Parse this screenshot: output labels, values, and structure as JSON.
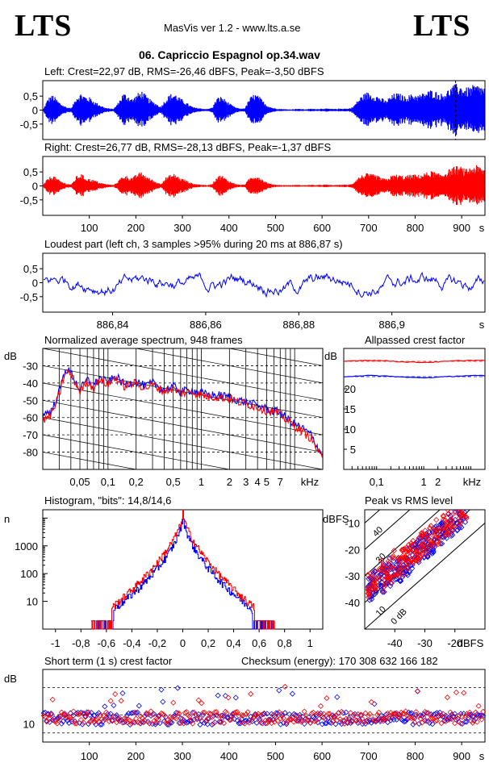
{
  "header": {
    "logo_left": "LTS",
    "logo_right": "LTS",
    "app": "MasVis ver 1.2 - www.lts.a.se",
    "file": "06. Capriccio Espagnol op.34.wav"
  },
  "labels": {
    "left": "Left: Crest=22,97 dB, RMS=-26,46 dBFS, Peak=-3,50 dBFS",
    "right": "Right: Crest=26,77 dB, RMS=-28,13 dBFS, Peak=-1,37 dBFS",
    "loudest": "Loudest part (left  ch, 3 samples >95% during 20 ms at 886,87 s)",
    "spectrum": "Normalized average spectrum, 948 frames",
    "allpass": "Allpassed crest factor",
    "histogram": "Histogram, \"bits\": 14,8/14,6",
    "peakrms": "Peak vs RMS level",
    "shortterm": "Short term (1 s) crest factor",
    "checksum": "Checksum (energy):  170 308 632 166 182"
  },
  "colors": {
    "left": "#0000ff",
    "right": "#ff0000",
    "grid": "#000000",
    "bg": "#ffffff"
  },
  "chart_data": [
    {
      "id": "wave-left",
      "type": "area",
      "ylim": [
        -1,
        1
      ],
      "yticks": [
        "0,5",
        "0",
        "-0,5"
      ],
      "xlim": [
        0,
        950
      ],
      "series": [
        {
          "name": "Left",
          "color": "#0000ff",
          "envelope": [
            0.05,
            0.45,
            0.55,
            0.35,
            0.2,
            0.1,
            0.08,
            0.5,
            0.62,
            0.5,
            0.45,
            0.3,
            0.2,
            0.1,
            0.06,
            0.05,
            0.3,
            0.62,
            0.55,
            0.4,
            0.6,
            0.7,
            0.5,
            0.35,
            0.25,
            0.12,
            0.4,
            0.58,
            0.62,
            0.45,
            0.35,
            0.2,
            0.1,
            0.08,
            0.05,
            0.04,
            0.1,
            0.45,
            0.5,
            0.35,
            0.2,
            0.1,
            0.05,
            0.08,
            0.45,
            0.6,
            0.5,
            0.3,
            0.15,
            0.08,
            0.05,
            0.04,
            0.03,
            0.03,
            0.05,
            0.04,
            0.03,
            0.05,
            0.04,
            0.05,
            0.06,
            0.05,
            0.04,
            0.05,
            0.06,
            0.05,
            0.12,
            0.35,
            0.55,
            0.65,
            0.6,
            0.55,
            0.45,
            0.35,
            0.5,
            0.62,
            0.6,
            0.5,
            0.55,
            0.6,
            0.55,
            0.62,
            0.7,
            0.75,
            0.65,
            0.6,
            0.7,
            0.85,
            0.95,
            0.9,
            0.8,
            0.85,
            0.92,
            0.9,
            0.85
          ]
        }
      ],
      "markers": [
        886.87
      ]
    },
    {
      "id": "wave-right",
      "type": "area",
      "ylim": [
        -1,
        1
      ],
      "yticks": [
        "0,5",
        "0",
        "-0,5"
      ],
      "xlim": [
        0,
        950
      ],
      "xticks": [
        100,
        200,
        300,
        400,
        500,
        600,
        700,
        800,
        900
      ],
      "xunit": "s",
      "series": [
        {
          "name": "Right",
          "color": "#ff0000",
          "envelope": [
            0.05,
            0.3,
            0.4,
            0.25,
            0.15,
            0.08,
            0.06,
            0.35,
            0.45,
            0.3,
            0.25,
            0.2,
            0.12,
            0.08,
            0.05,
            0.04,
            0.2,
            0.4,
            0.35,
            0.3,
            0.45,
            0.5,
            0.35,
            0.25,
            0.15,
            0.08,
            0.3,
            0.4,
            0.45,
            0.3,
            0.25,
            0.15,
            0.08,
            0.06,
            0.04,
            0.03,
            0.08,
            0.35,
            0.4,
            0.25,
            0.15,
            0.08,
            0.04,
            0.06,
            0.3,
            0.4,
            0.35,
            0.2,
            0.1,
            0.06,
            0.04,
            0.03,
            0.03,
            0.03,
            0.04,
            0.03,
            0.03,
            0.04,
            0.03,
            0.04,
            0.05,
            0.04,
            0.03,
            0.04,
            0.05,
            0.04,
            0.1,
            0.3,
            0.4,
            0.45,
            0.42,
            0.4,
            0.3,
            0.25,
            0.35,
            0.42,
            0.4,
            0.35,
            0.4,
            0.42,
            0.4,
            0.45,
            0.5,
            0.55,
            0.45,
            0.45,
            0.55,
            0.65,
            0.72,
            0.7,
            0.6,
            0.68,
            0.75,
            0.72,
            0.65
          ]
        }
      ]
    },
    {
      "id": "loudest",
      "type": "line",
      "ylim": [
        -1,
        1
      ],
      "yticks": [
        "0,5",
        "0",
        "-0,5"
      ],
      "xlim": [
        886.825,
        886.92
      ],
      "xticks": [
        "886,84",
        "886,86",
        "886,88",
        "886,9"
      ],
      "xunit": "s",
      "series": [
        {
          "name": "Left",
          "color": "#0000ff"
        }
      ]
    },
    {
      "id": "spectrum",
      "type": "line",
      "ylim": [
        -90,
        -20
      ],
      "yticks": [
        -30,
        -40,
        -50,
        -60,
        -70,
        -80
      ],
      "yunit": "dB",
      "xscale": "log",
      "xlim": [
        0.02,
        20
      ],
      "xticks": [
        "0,05",
        "0,1",
        "0,2",
        "0,5",
        "1",
        "2",
        "3",
        "4",
        "5",
        "7"
      ],
      "xunit": "kHz",
      "series": [
        {
          "name": "Left",
          "color": "#0000ff",
          "freq": [
            0.02,
            0.025,
            0.03,
            0.035,
            0.04,
            0.05,
            0.06,
            0.07,
            0.08,
            0.1,
            0.12,
            0.15,
            0.2,
            0.25,
            0.3,
            0.4,
            0.5,
            0.6,
            0.8,
            1,
            1.2,
            1.5,
            2,
            2.5,
            3,
            4,
            5,
            6,
            7,
            8,
            10,
            12,
            15,
            18,
            20
          ],
          "level": [
            -58,
            -56,
            -45,
            -32,
            -34,
            -44,
            -38,
            -42,
            -37,
            -40,
            -36,
            -41,
            -39,
            -42,
            -40,
            -44,
            -42,
            -45,
            -44,
            -46,
            -47,
            -47,
            -48,
            -50,
            -51,
            -53,
            -55,
            -56,
            -57,
            -60,
            -64,
            -66,
            -70,
            -78,
            -82
          ]
        },
        {
          "name": "Right",
          "color": "#ff0000",
          "freq": [
            0.02,
            0.025,
            0.03,
            0.035,
            0.04,
            0.05,
            0.06,
            0.07,
            0.08,
            0.1,
            0.12,
            0.15,
            0.2,
            0.25,
            0.3,
            0.4,
            0.5,
            0.6,
            0.8,
            1,
            1.2,
            1.5,
            2,
            2.5,
            3,
            4,
            5,
            6,
            7,
            8,
            10,
            12,
            15,
            18,
            20
          ],
          "level": [
            -62,
            -58,
            -47,
            -33,
            -35,
            -45,
            -39,
            -43,
            -38,
            -41,
            -37,
            -42,
            -40,
            -43,
            -41,
            -45,
            -43,
            -46,
            -45,
            -47,
            -48,
            -48,
            -49,
            -51,
            -52,
            -54,
            -56,
            -57,
            -58,
            -61,
            -65,
            -68,
            -72,
            -80,
            -85
          ]
        }
      ]
    },
    {
      "id": "allpass",
      "type": "line",
      "ylim": [
        0,
        30
      ],
      "yticks": [
        20,
        15,
        10,
        5
      ],
      "yunit": "dB",
      "xscale": "log",
      "xlim": [
        0.02,
        20
      ],
      "xticks": [
        "0,1",
        "1",
        "2"
      ],
      "xunit": "kHz",
      "series": [
        {
          "name": "Left",
          "color": "#0000ff",
          "value": 23
        },
        {
          "name": "Right",
          "color": "#ff0000",
          "value": 26.8
        }
      ]
    },
    {
      "id": "histogram",
      "type": "line",
      "yscale": "log",
      "ylim": [
        1,
        20000
      ],
      "yticks": [
        1000,
        100,
        10
      ],
      "yunit": "n",
      "xlim": [
        -1.1,
        1.1
      ],
      "xticks": [
        "-1",
        "-0,8",
        "-0,6",
        "-0,4",
        "-0,2",
        "0",
        "0,2",
        "0,4",
        "0,6",
        "0,8",
        "1"
      ],
      "series": [
        {
          "name": "Left",
          "color": "#0000ff",
          "halfwidth": 0.7
        },
        {
          "name": "Right",
          "color": "#ff0000",
          "halfwidth": 0.72
        }
      ]
    },
    {
      "id": "peakrms",
      "type": "scatter",
      "xlim": [
        -50,
        -10
      ],
      "ylim": [
        -50,
        -5
      ],
      "xunit": "dBFS",
      "yunit": "dBFS",
      "xticks": [
        -40,
        -30,
        -20
      ],
      "yticks": [
        -10,
        -20,
        -30,
        -40
      ],
      "crest_lines": [
        "40",
        "30",
        "20",
        "10",
        "0 dB"
      ],
      "series": [
        {
          "name": "Left",
          "color": "#0000ff"
        },
        {
          "name": "Right",
          "color": "#ff0000"
        }
      ]
    },
    {
      "id": "shortterm",
      "type": "scatter",
      "xlim": [
        0,
        950
      ],
      "ylim": [
        0,
        40
      ],
      "yticks": [
        10
      ],
      "yunit": "dB",
      "xticks": [
        100,
        200,
        300,
        400,
        500,
        600,
        700,
        800,
        900
      ],
      "xunit": "s",
      "series": [
        {
          "name": "Left",
          "color": "#0000ff"
        },
        {
          "name": "Right",
          "color": "#ff0000"
        }
      ]
    }
  ]
}
